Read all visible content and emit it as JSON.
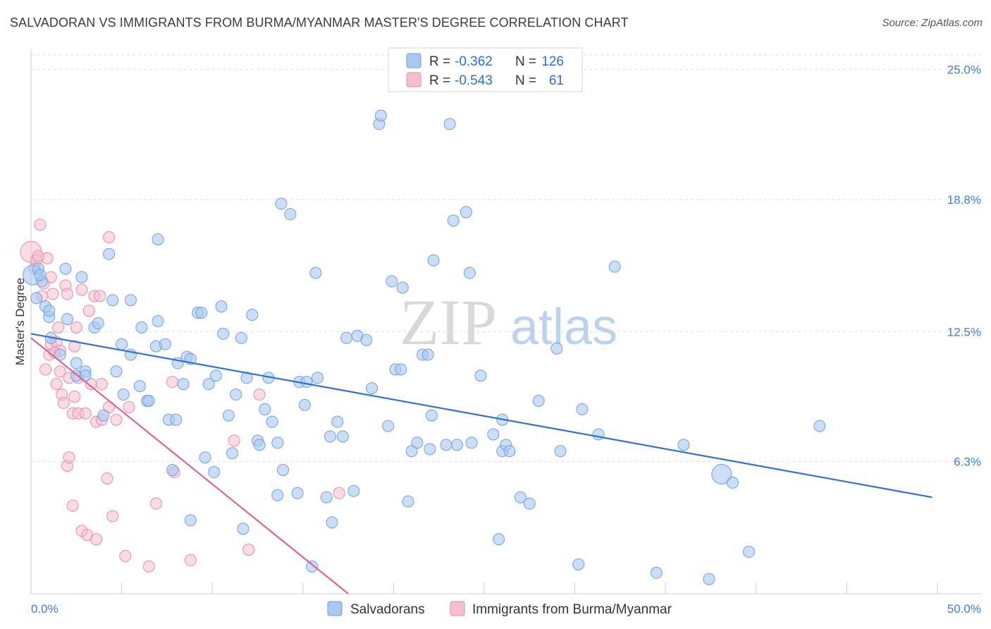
{
  "header": {
    "title": "SALVADORAN VS IMMIGRANTS FROM BURMA/MYANMAR MASTER'S DEGREE CORRELATION CHART",
    "source": "Source: ZipAtlas.com"
  },
  "watermark": {
    "zip": "ZIP",
    "atlas": "atlas"
  },
  "colors": {
    "blue_fill": "#a9c8f0",
    "blue_stroke": "#6fa0de",
    "blue_line": "#2f72d0",
    "pink_fill": "#f6bfd0",
    "pink_stroke": "#e88aa8",
    "pink_line": "#e0628e",
    "tick_label": "#3f7fd4",
    "grid": "#dddddd"
  },
  "legend": {
    "rows": [
      {
        "r_label": "R =",
        "r_value": "-0.362",
        "n_label": "N =",
        "n_value": "126",
        "series": "blue"
      },
      {
        "r_label": "R =",
        "r_value": "-0.543",
        "n_label": "N =",
        "n_value": "61",
        "series": "pink"
      }
    ]
  },
  "bottom_legend": [
    {
      "label": "Salvadorans",
      "series": "blue"
    },
    {
      "label": "Immigrants from Burma/Myanmar",
      "series": "pink"
    }
  ],
  "chart_data": {
    "type": "scatter",
    "title": "SALVADORAN VS IMMIGRANTS FROM BURMA/MYANMAR MASTER'S DEGREE CORRELATION CHART",
    "xlabel": "",
    "ylabel": "Master's Degree",
    "xlim": [
      0,
      50
    ],
    "ylim": [
      0,
      26.5
    ],
    "x_tick_labels": [
      "0.0%",
      "50.0%"
    ],
    "y_ticks": [
      {
        "value": 6.3,
        "label": "6.3%"
      },
      {
        "value": 12.5,
        "label": "12.5%"
      },
      {
        "value": 18.8,
        "label": "18.8%"
      },
      {
        "value": 25.0,
        "label": "25.0%"
      }
    ],
    "grid": "horizontal dashed",
    "legend_position": "top-center",
    "series": [
      {
        "name": "Salvadorans",
        "color": "#a9c8f0",
        "trend": {
          "x": [
            0,
            49.7
          ],
          "y": [
            12.4,
            4.6
          ]
        },
        "points": [
          [
            0.1,
            15.2
          ],
          [
            0.3,
            14.1
          ],
          [
            0.4,
            15.5
          ],
          [
            0.6,
            14.9
          ],
          [
            0.8,
            13.7
          ],
          [
            1.0,
            13.2
          ],
          [
            1.1,
            12.2
          ],
          [
            1.0,
            13.5
          ],
          [
            1.6,
            11.4
          ],
          [
            1.9,
            15.5
          ],
          [
            2.0,
            13.1
          ],
          [
            2.5,
            10.4
          ],
          [
            2.5,
            11.0
          ],
          [
            2.8,
            15.1
          ],
          [
            3.0,
            10.6
          ],
          [
            3.0,
            10.4
          ],
          [
            3.5,
            12.7
          ],
          [
            3.7,
            12.9
          ],
          [
            4.0,
            8.5
          ],
          [
            4.3,
            16.2
          ],
          [
            4.5,
            14.0
          ],
          [
            4.7,
            10.6
          ],
          [
            5.0,
            11.9
          ],
          [
            5.1,
            9.5
          ],
          [
            5.5,
            14.0
          ],
          [
            5.5,
            11.4
          ],
          [
            6.0,
            9.9
          ],
          [
            6.1,
            12.7
          ],
          [
            6.4,
            9.2
          ],
          [
            6.5,
            9.2
          ],
          [
            6.9,
            11.8
          ],
          [
            7.0,
            16.9
          ],
          [
            7.0,
            13.0
          ],
          [
            7.4,
            11.9
          ],
          [
            7.6,
            8.3
          ],
          [
            7.8,
            5.9
          ],
          [
            8.0,
            8.3
          ],
          [
            8.1,
            11.0
          ],
          [
            8.4,
            10.0
          ],
          [
            8.6,
            11.3
          ],
          [
            8.8,
            11.2
          ],
          [
            8.8,
            3.5
          ],
          [
            9.2,
            13.4
          ],
          [
            9.4,
            13.4
          ],
          [
            9.6,
            6.5
          ],
          [
            9.8,
            10.0
          ],
          [
            10.1,
            5.8
          ],
          [
            10.2,
            10.4
          ],
          [
            10.5,
            13.7
          ],
          [
            10.6,
            12.4
          ],
          [
            10.9,
            8.5
          ],
          [
            11.1,
            6.7
          ],
          [
            11.3,
            9.5
          ],
          [
            11.6,
            12.2
          ],
          [
            11.7,
            3.1
          ],
          [
            11.9,
            10.3
          ],
          [
            12.2,
            13.3
          ],
          [
            12.5,
            7.3
          ],
          [
            12.6,
            7.1
          ],
          [
            12.9,
            8.8
          ],
          [
            13.1,
            10.3
          ],
          [
            13.3,
            8.2
          ],
          [
            13.6,
            7.2
          ],
          [
            13.6,
            4.7
          ],
          [
            13.8,
            18.6
          ],
          [
            13.9,
            5.9
          ],
          [
            14.3,
            18.1
          ],
          [
            14.7,
            4.8
          ],
          [
            14.8,
            10.1
          ],
          [
            15.1,
            9.0
          ],
          [
            15.2,
            10.1
          ],
          [
            15.5,
            1.3
          ],
          [
            15.7,
            15.3
          ],
          [
            15.8,
            10.3
          ],
          [
            16.3,
            4.6
          ],
          [
            16.5,
            7.5
          ],
          [
            16.6,
            3.4
          ],
          [
            16.9,
            8.2
          ],
          [
            17.2,
            7.5
          ],
          [
            17.4,
            12.2
          ],
          [
            17.8,
            4.9
          ],
          [
            18.0,
            12.3
          ],
          [
            18.5,
            12.1
          ],
          [
            18.8,
            9.8
          ],
          [
            19.2,
            22.4
          ],
          [
            19.3,
            22.8
          ],
          [
            19.7,
            8.0
          ],
          [
            19.9,
            14.9
          ],
          [
            20.1,
            10.7
          ],
          [
            20.4,
            10.7
          ],
          [
            20.5,
            14.6
          ],
          [
            20.8,
            4.4
          ],
          [
            21.0,
            6.8
          ],
          [
            21.3,
            7.2
          ],
          [
            21.6,
            11.4
          ],
          [
            21.9,
            11.4
          ],
          [
            22.0,
            6.9
          ],
          [
            22.1,
            8.5
          ],
          [
            22.2,
            15.9
          ],
          [
            22.9,
            7.1
          ],
          [
            23.1,
            22.4
          ],
          [
            23.3,
            17.8
          ],
          [
            23.5,
            7.1
          ],
          [
            24.0,
            18.2
          ],
          [
            24.2,
            15.3
          ],
          [
            24.3,
            7.2
          ],
          [
            24.8,
            10.4
          ],
          [
            25.5,
            7.6
          ],
          [
            25.8,
            2.6
          ],
          [
            26.0,
            8.3
          ],
          [
            26.0,
            6.8
          ],
          [
            26.2,
            7.1
          ],
          [
            26.4,
            6.8
          ],
          [
            27.0,
            4.6
          ],
          [
            27.5,
            4.3
          ],
          [
            28.0,
            9.2
          ],
          [
            29.0,
            11.7
          ],
          [
            29.2,
            6.8
          ],
          [
            30.2,
            1.4
          ],
          [
            30.4,
            8.8
          ],
          [
            31.3,
            7.6
          ],
          [
            32.2,
            15.6
          ],
          [
            34.5,
            1.0
          ],
          [
            36.0,
            7.1
          ],
          [
            37.4,
            0.7
          ],
          [
            38.1,
            5.7
          ],
          [
            38.7,
            5.3
          ],
          [
            39.6,
            2.0
          ],
          [
            43.5,
            8.0
          ],
          [
            0.5,
            15.2
          ]
        ]
      },
      {
        "name": "Immigrants from Burma/Myanmar",
        "color": "#f6bfd0",
        "trend": {
          "x": [
            0,
            17.5
          ],
          "y": [
            12.2,
            0.0
          ]
        },
        "points": [
          [
            0.0,
            16.3
          ],
          [
            0.3,
            15.9
          ],
          [
            0.5,
            17.6
          ],
          [
            0.6,
            14.2
          ],
          [
            0.7,
            14.8
          ],
          [
            0.8,
            10.7
          ],
          [
            0.9,
            16.0
          ],
          [
            1.0,
            11.4
          ],
          [
            1.1,
            11.9
          ],
          [
            1.2,
            14.3
          ],
          [
            1.4,
            12.0
          ],
          [
            1.4,
            10.0
          ],
          [
            1.5,
            12.7
          ],
          [
            1.6,
            11.6
          ],
          [
            1.6,
            10.6
          ],
          [
            1.7,
            9.5
          ],
          [
            1.8,
            9.1
          ],
          [
            1.9,
            14.7
          ],
          [
            2.0,
            14.3
          ],
          [
            2.0,
            6.1
          ],
          [
            2.1,
            10.3
          ],
          [
            2.1,
            6.5
          ],
          [
            2.3,
            8.6
          ],
          [
            2.3,
            4.2
          ],
          [
            2.4,
            11.8
          ],
          [
            2.4,
            9.4
          ],
          [
            2.5,
            12.7
          ],
          [
            2.6,
            8.6
          ],
          [
            2.6,
            10.3
          ],
          [
            2.8,
            14.5
          ],
          [
            2.8,
            3.0
          ],
          [
            3.0,
            8.6
          ],
          [
            3.1,
            2.8
          ],
          [
            3.2,
            13.5
          ],
          [
            3.3,
            10.0
          ],
          [
            3.5,
            14.2
          ],
          [
            3.6,
            8.2
          ],
          [
            3.6,
            2.6
          ],
          [
            3.8,
            14.2
          ],
          [
            3.9,
            8.3
          ],
          [
            3.9,
            10.0
          ],
          [
            4.2,
            5.5
          ],
          [
            4.3,
            8.9
          ],
          [
            4.3,
            17.0
          ],
          [
            4.5,
            3.7
          ],
          [
            4.7,
            8.3
          ],
          [
            5.2,
            1.8
          ],
          [
            5.4,
            8.9
          ],
          [
            6.5,
            1.3
          ],
          [
            6.9,
            4.3
          ],
          [
            7.8,
            10.1
          ],
          [
            7.9,
            5.8
          ],
          [
            8.8,
            1.6
          ],
          [
            11.2,
            7.3
          ],
          [
            12.0,
            2.1
          ],
          [
            12.6,
            9.5
          ],
          [
            17.0,
            4.8
          ],
          [
            1.1,
            15.1
          ],
          [
            1.3,
            11.5
          ],
          [
            0.4,
            16.1
          ],
          [
            0.2,
            15.5
          ]
        ]
      }
    ]
  }
}
